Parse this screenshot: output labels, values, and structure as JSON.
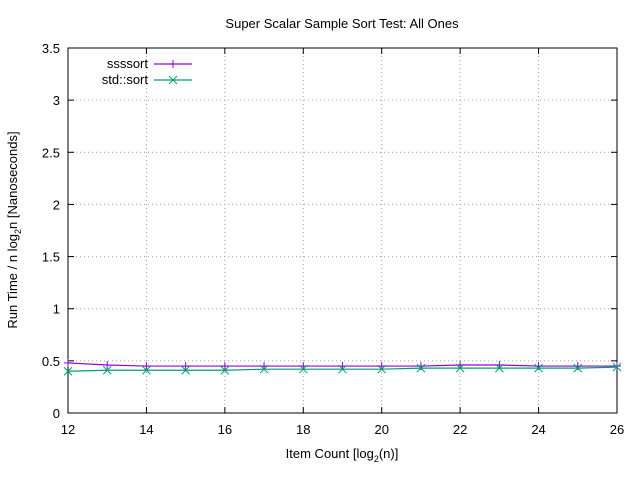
{
  "chart_data": {
    "type": "line",
    "title": "Super Scalar Sample Sort Test: All Ones",
    "xlabel": {
      "prefix": "Item Count [log",
      "sub": "2",
      "suffix": "(n)]"
    },
    "ylabel": {
      "prefix": "Run Time / n log",
      "sub": "2",
      "suffix": "n [Nanoseconds]"
    },
    "xlim": [
      12,
      26
    ],
    "ylim": [
      0,
      3.5
    ],
    "xticks": [
      12,
      14,
      16,
      18,
      20,
      22,
      24,
      26
    ],
    "yticks": [
      0,
      0.5,
      1,
      1.5,
      2,
      2.5,
      3,
      3.5
    ],
    "ytick_labels": [
      "0",
      "0.5",
      "1",
      "1.5",
      "2",
      "2.5",
      "3",
      "3.5"
    ],
    "grid": true,
    "legend_position": "top-left",
    "x": [
      12,
      13,
      14,
      15,
      16,
      17,
      18,
      19,
      20,
      21,
      22,
      23,
      24,
      25,
      26
    ],
    "series": [
      {
        "name": "ssssort",
        "color": "#9400d3",
        "marker": "plus",
        "values": [
          0.48,
          0.46,
          0.45,
          0.45,
          0.45,
          0.45,
          0.45,
          0.45,
          0.45,
          0.45,
          0.46,
          0.46,
          0.45,
          0.45,
          0.45
        ]
      },
      {
        "name": "std::sort",
        "color": "#009e73",
        "marker": "cross",
        "values": [
          0.4,
          0.41,
          0.41,
          0.41,
          0.41,
          0.42,
          0.42,
          0.42,
          0.42,
          0.43,
          0.43,
          0.43,
          0.43,
          0.43,
          0.44
        ]
      }
    ]
  }
}
